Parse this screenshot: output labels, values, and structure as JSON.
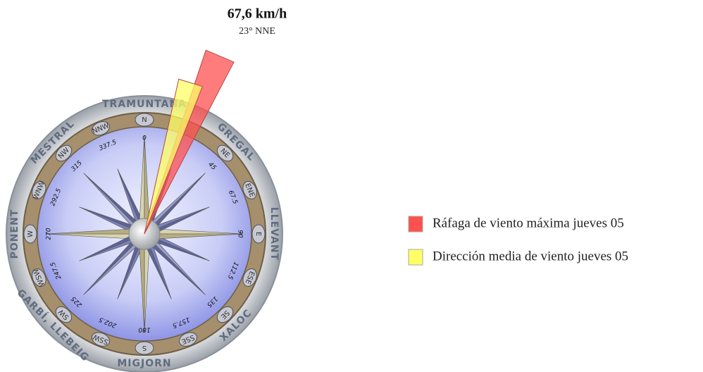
{
  "chart_data": {
    "type": "wind-compass",
    "title": "67,6 km/h",
    "subtitle": "23° NNE",
    "series": [
      {
        "name": "Ráfaga de viento máxima jueves 05",
        "color": "#ff5050",
        "direction": 23
      },
      {
        "name": "Dirección media de viento jueves 05",
        "color": "#ffff66",
        "direction": 17
      }
    ],
    "angle_ticks": [
      0,
      45,
      67.5,
      90,
      112.5,
      135,
      157.5,
      180,
      202.5,
      225,
      247.5,
      270,
      292.5,
      315,
      337.5
    ],
    "points": [
      {
        "value": 0,
        "label": "N"
      },
      {
        "value": 45,
        "label": "NE"
      },
      {
        "value": 67.5,
        "label": "ENE"
      },
      {
        "value": 90,
        "label": "E"
      },
      {
        "value": 112.5,
        "label": "ESE"
      },
      {
        "value": 135,
        "label": "SE"
      },
      {
        "value": 157.5,
        "label": "SSE"
      },
      {
        "value": 180,
        "label": "S"
      },
      {
        "value": 202.5,
        "label": "SSW"
      },
      {
        "value": 225,
        "label": "SW"
      },
      {
        "value": 247.5,
        "label": "WSW"
      },
      {
        "value": 270,
        "label": "W"
      },
      {
        "value": 292.5,
        "label": "WNW"
      },
      {
        "value": 315,
        "label": "NW"
      },
      {
        "value": 337.5,
        "label": "NNW"
      }
    ],
    "winds": [
      {
        "value": 0,
        "label": "TRAMUNTANA"
      },
      {
        "value": 45,
        "label": "GREGAL"
      },
      {
        "value": 90,
        "label": "LLEVANT"
      },
      {
        "value": 135,
        "label": "XALOC"
      },
      {
        "value": 180,
        "label": "MIGJORN"
      },
      {
        "value": 225,
        "label": "GARBÍ, LLEBEIG"
      },
      {
        "value": 270,
        "label": "PONENT"
      },
      {
        "value": 315,
        "label": "MESTRAL"
      }
    ]
  }
}
